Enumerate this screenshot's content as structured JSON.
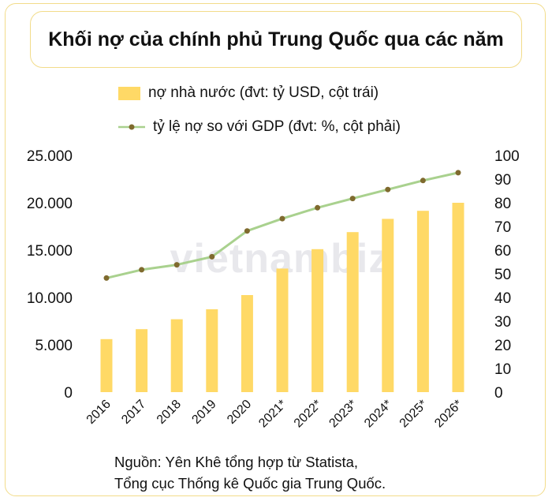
{
  "chart_data": {
    "type": "bar+line",
    "title": "Khối nợ của chính phủ Trung Quốc qua các năm",
    "categories": [
      "2016",
      "2017",
      "2018",
      "2019",
      "2020",
      "2021*",
      "2022*",
      "2023*",
      "2024*",
      "2025*",
      "2026*"
    ],
    "series": [
      {
        "name": "nợ nhà nước (đvt: tỷ USD, cột trái)",
        "type": "bar",
        "axis": "left",
        "color": "#ffd966",
        "values": [
          5600,
          6650,
          7700,
          8750,
          10250,
          13050,
          15100,
          16900,
          18300,
          19150,
          20000
        ]
      },
      {
        "name": "tỷ lệ nợ so với GDP (đvt: %, cột phải)",
        "type": "line",
        "axis": "right",
        "color": "#a9d18e",
        "marker_color": "#7f6a2e",
        "values": [
          48.2,
          51.7,
          53.8,
          57.2,
          68.1,
          73.3,
          77.9,
          81.8,
          85.6,
          89.4,
          92.7
        ]
      }
    ],
    "left_axis": {
      "ylim": [
        0,
        25000
      ],
      "ticks": [
        "0",
        "5.000",
        "10.000",
        "15.000",
        "20.000",
        "25.000"
      ]
    },
    "right_axis": {
      "ylim": [
        0,
        100
      ],
      "ticks": [
        "0",
        "10",
        "20",
        "30",
        "40",
        "50",
        "60",
        "70",
        "80",
        "90",
        "100"
      ]
    },
    "grid": false,
    "legend_position": "top"
  },
  "watermark": "vietnambiz",
  "source": {
    "line1": "Nguồn: Yên Khê tổng hợp từ Statista,",
    "line2": "Tổng cục Thống kê Quốc gia Trung Quốc."
  }
}
